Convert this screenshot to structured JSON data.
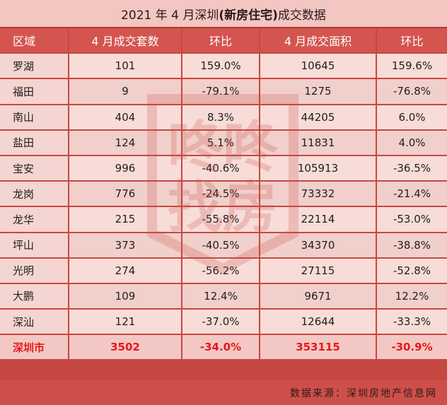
{
  "title": {
    "prefix": "2021 年 4 月深圳",
    "emphasis": "(新房住宅)",
    "suffix": "成交数据"
  },
  "table": {
    "headers": [
      "区域",
      "4 月成交套数",
      "环比",
      "4 月成交面积",
      "环比"
    ],
    "rows": [
      [
        "罗湖",
        "101",
        "159.0%",
        "10645",
        "159.6%"
      ],
      [
        "福田",
        "9",
        "-79.1%",
        "1275",
        "-76.8%"
      ],
      [
        "南山",
        "404",
        "8.3%",
        "44205",
        "6.0%"
      ],
      [
        "盐田",
        "124",
        "5.1%",
        "11831",
        "4.0%"
      ],
      [
        "宝安",
        "996",
        "-40.6%",
        "105913",
        "-36.5%"
      ],
      [
        "龙岗",
        "776",
        "-24.5%",
        "73332",
        "-21.4%"
      ],
      [
        "龙华",
        "215",
        "-55.8%",
        "22114",
        "-53.0%"
      ],
      [
        "坪山",
        "373",
        "-40.5%",
        "34370",
        "-38.8%"
      ],
      [
        "光明",
        "274",
        "-56.2%",
        "27115",
        "-52.8%"
      ],
      [
        "大鹏",
        "109",
        "12.4%",
        "9671",
        "12.2%"
      ],
      [
        "深汕",
        "121",
        "-37.0%",
        "12644",
        "-33.3%"
      ]
    ],
    "total": [
      "深圳市",
      "3502",
      "-34.0%",
      "353115",
      "-30.9%"
    ]
  },
  "footer": "数据来源：深圳房地产信息网",
  "watermark": {
    "text": [
      "咚咚",
      "找房"
    ],
    "color": "#c64843"
  }
}
